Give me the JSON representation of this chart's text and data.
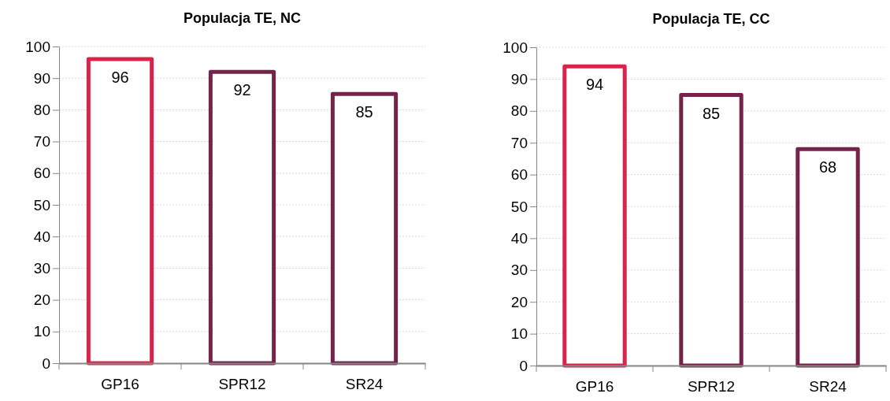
{
  "chart_data": [
    {
      "type": "bar",
      "title": "Populacja TE, NC",
      "categories": [
        "GP16",
        "SPR12",
        "SR24"
      ],
      "values": [
        96,
        92,
        85
      ],
      "colors": [
        "#d6244b",
        "#74244a",
        "#74244a"
      ],
      "ylim": [
        0,
        100
      ],
      "yticks": [
        0,
        10,
        20,
        30,
        40,
        50,
        60,
        70,
        80,
        90,
        100
      ],
      "grid": "y",
      "data_labels": true
    },
    {
      "type": "bar",
      "title": "Populacja TE, CC",
      "categories": [
        "GP16",
        "SPR12",
        "SR24"
      ],
      "values": [
        94,
        85,
        68
      ],
      "colors": [
        "#d6244b",
        "#74244a",
        "#74244a"
      ],
      "ylim": [
        0,
        100
      ],
      "yticks": [
        0,
        10,
        20,
        30,
        40,
        50,
        60,
        70,
        80,
        90,
        100
      ],
      "grid": "y",
      "data_labels": true
    }
  ]
}
